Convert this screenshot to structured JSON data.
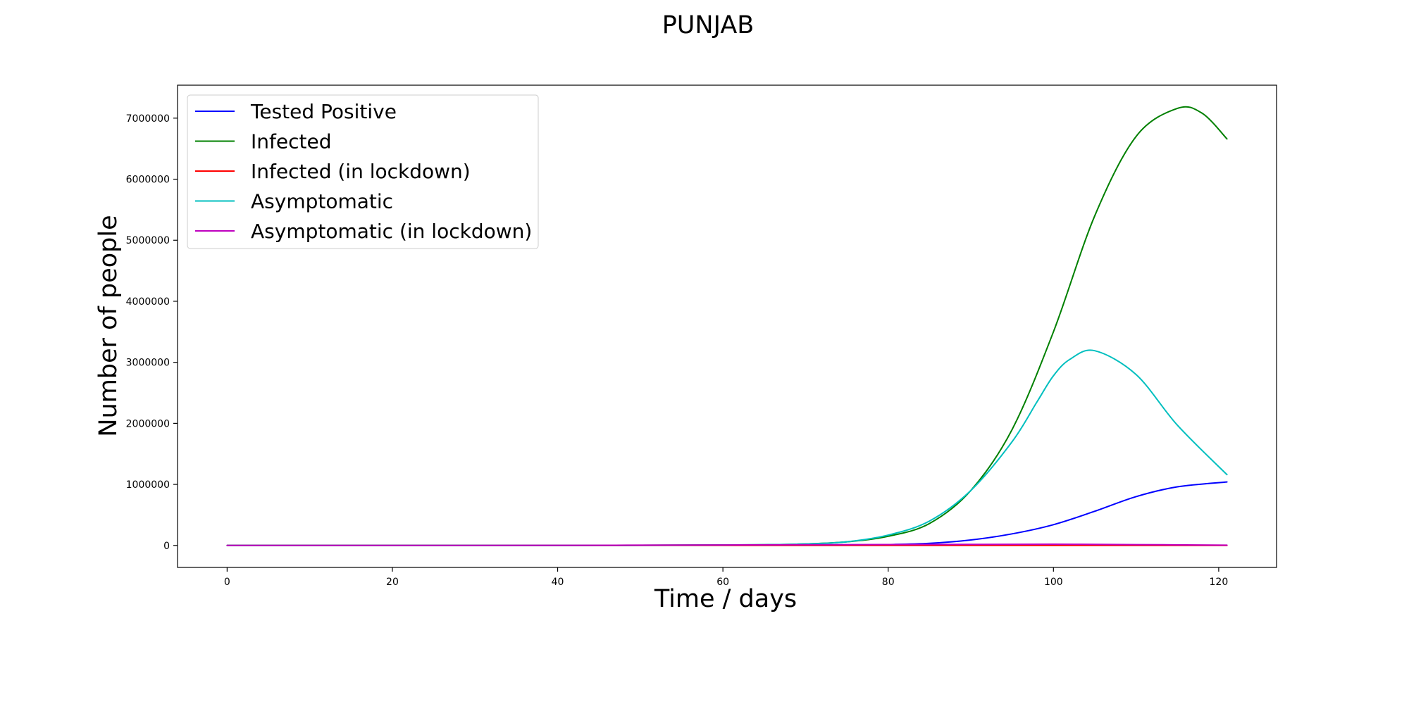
{
  "chart_data": {
    "type": "line",
    "title": "PUNJAB",
    "xlabel": "Time / days",
    "ylabel": "Number of people",
    "xlim": [
      -6,
      127
    ],
    "ylim": [
      -360000,
      7540000
    ],
    "grid": false,
    "legend_position": "top-left",
    "x_ticks": [
      0,
      20,
      40,
      60,
      80,
      100,
      120
    ],
    "x_tick_labels": [
      "0",
      "20",
      "40",
      "60",
      "80",
      "100",
      "120"
    ],
    "y_ticks": [
      0,
      1000000,
      2000000,
      3000000,
      4000000,
      5000000,
      6000000,
      7000000
    ],
    "y_tick_labels": [
      "0",
      "1000000",
      "2000000",
      "3000000",
      "4000000",
      "5000000",
      "6000000",
      "7000000"
    ],
    "series": [
      {
        "name": "Tested Positive",
        "color": "#0000ff",
        "x": [
          0,
          10,
          20,
          30,
          40,
          50,
          60,
          65,
          70,
          75,
          80,
          85,
          90,
          95,
          100,
          105,
          110,
          115,
          121
        ],
        "values": [
          0,
          0,
          0,
          200,
          800,
          2000,
          4000,
          5000,
          6000,
          8000,
          15000,
          35000,
          90000,
          190000,
          340000,
          560000,
          800000,
          960000,
          1040000
        ]
      },
      {
        "name": "Infected",
        "color": "#008000",
        "x": [
          0,
          10,
          20,
          30,
          40,
          50,
          60,
          65,
          70,
          75,
          80,
          85,
          90,
          95,
          100,
          105,
          110,
          115,
          118,
          121
        ],
        "values": [
          0,
          0,
          0,
          0,
          0,
          3000,
          8000,
          12000,
          25000,
          60000,
          150000,
          360000,
          900000,
          1900000,
          3500000,
          5400000,
          6700000,
          7160000,
          7080000,
          6660000
        ]
      },
      {
        "name": "Infected (in lockdown)",
        "color": "#ff0000",
        "x": [
          0,
          20,
          40,
          60,
          80,
          100,
          121
        ],
        "values": [
          0,
          0,
          0,
          0,
          0,
          0,
          0
        ]
      },
      {
        "name": "Asymptomatic",
        "color": "#00bfbf",
        "x": [
          0,
          10,
          20,
          30,
          40,
          50,
          60,
          65,
          70,
          75,
          80,
          85,
          90,
          95,
          98,
          100,
          102,
          105,
          110,
          115,
          121
        ],
        "values": [
          0,
          0,
          0,
          0,
          0,
          3000,
          8000,
          12000,
          25000,
          60000,
          170000,
          400000,
          900000,
          1700000,
          2350000,
          2780000,
          3050000,
          3190000,
          2800000,
          1970000,
          1160000
        ]
      },
      {
        "name": "Asymptomatic (in lockdown)",
        "color": "#bf00bf",
        "x": [
          0,
          20,
          40,
          60,
          70,
          80,
          90,
          100,
          110,
          121
        ],
        "values": [
          0,
          0,
          2000,
          8000,
          12000,
          15000,
          18000,
          20000,
          14000,
          5000
        ]
      }
    ]
  }
}
